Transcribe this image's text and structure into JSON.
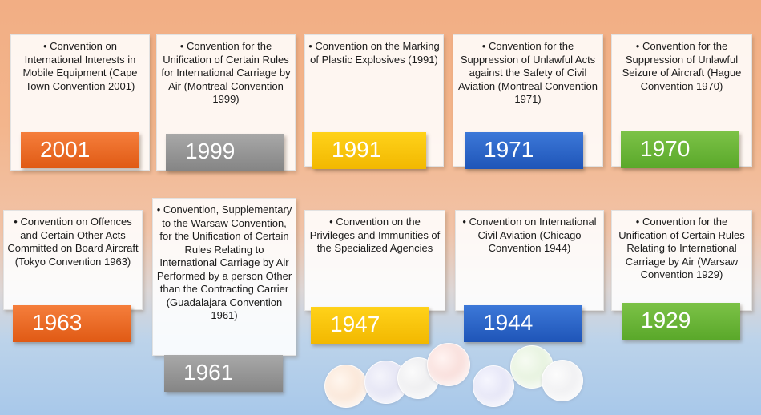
{
  "timeline": {
    "row1": [
      {
        "year": "2001",
        "text": "• Convention on International Interests in Mobile Equipment (Cape Town Convention 2001)",
        "color": "#e8621f"
      },
      {
        "year": "1999",
        "text": "• Convention for the Unification of Certain Rules for International Carriage by Air (Montreal Convention 1999)",
        "color": "#959595"
      },
      {
        "year": "1991",
        "text": "• Convention on the Marking of Plastic Explosives (1991)",
        "color": "#f6c20e"
      },
      {
        "year": "1971",
        "text": "• Convention for the Suppression of Unlawful Acts against the Safety of Civil Aviation (Montreal Convention 1971)",
        "color": "#2a63c6"
      },
      {
        "year": "1970",
        "text": "• Convention for the Suppression of Unlawful Seizure of Aircraft (Hague Convention 1970)",
        "color": "#6ab33a"
      }
    ],
    "row2": [
      {
        "year": "1963",
        "text": "• Convention on Offences and Certain Other Acts Committed on Board Aircraft (Tokyo Convention 1963)",
        "color": "#e8621f"
      },
      {
        "year": "1961",
        "text": "• Convention, Supplementary to the Warsaw Convention, for the Unification of Certain Rules Relating to International Carriage by Air Performed by a person Other than the Contracting Carrier (Guadalajara Convention 1961)",
        "color": "#959595"
      },
      {
        "year": "1947",
        "text": "• Convention on the Privileges and Immunities of the Specialized Agencies",
        "color": "#f6c20e"
      },
      {
        "year": "1944",
        "text": "• Convention on International Civil Aviation (Chicago Convention 1944)",
        "color": "#2a63c6"
      },
      {
        "year": "1929",
        "text": "• Convention for the Unification of Certain Rules Relating to International Carriage by Air (Warsaw Convention 1929)",
        "color": "#6ab33a"
      }
    ]
  }
}
